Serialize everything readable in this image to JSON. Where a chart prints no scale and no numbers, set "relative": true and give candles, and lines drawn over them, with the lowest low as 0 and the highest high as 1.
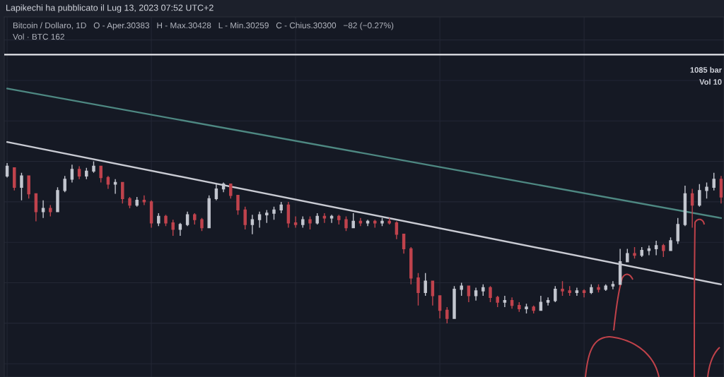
{
  "chart_data": {
    "type": "candlestick",
    "relative": true,
    "grid": true,
    "title": "Lapikechi ha pubblicato il Lug 13, 2023 07:52 UTC+2",
    "subtitle": "Bitcoin / Dollaro, 1D   O - Aper.30383   H - Max.30428   L - Min.30259   C - Chius.30300   −82 (−0.27%)",
    "annotations": [
      "Vol · BTC 162",
      "1085 bar",
      "Vol 10"
    ],
    "categories": [
      null,
      null,
      null,
      null,
      null,
      null,
      null,
      null,
      null,
      null,
      null,
      null,
      null,
      null,
      null,
      null,
      null,
      null,
      null,
      null,
      null,
      null,
      null,
      null,
      null,
      null,
      null,
      null,
      null,
      null,
      null,
      null,
      null,
      null,
      null,
      null,
      null,
      null,
      null,
      null,
      null,
      null,
      null,
      null,
      null,
      null,
      null,
      null,
      null,
      null,
      null,
      null,
      null,
      null,
      null,
      null,
      null,
      null,
      null,
      null,
      null,
      null,
      null,
      null,
      null,
      null,
      null,
      null,
      null,
      null,
      null,
      null,
      null,
      null,
      null,
      null,
      null,
      null,
      null,
      null,
      null,
      null,
      null,
      null,
      null,
      null,
      null,
      null,
      null,
      null,
      null,
      null,
      null,
      null,
      null,
      null,
      null,
      null,
      null,
      null
    ],
    "ohlc": [
      [
        0.91,
        0.99,
        0.9,
        0.97
      ],
      [
        0.96,
        0.96,
        0.82,
        0.84
      ],
      [
        0.84,
        0.93,
        0.76,
        0.91
      ],
      [
        0.91,
        0.91,
        0.77,
        0.8
      ],
      [
        0.8,
        0.8,
        0.63,
        0.69
      ],
      [
        0.69,
        0.76,
        0.65,
        0.71
      ],
      [
        0.71,
        0.73,
        0.66,
        0.69
      ],
      [
        0.69,
        0.84,
        0.69,
        0.82
      ],
      [
        0.82,
        0.91,
        0.81,
        0.89
      ],
      [
        0.89,
        0.98,
        0.87,
        0.95
      ],
      [
        0.95,
        0.97,
        0.89,
        0.91
      ],
      [
        0.91,
        0.96,
        0.89,
        0.94
      ],
      [
        0.94,
        1,
        0.93,
        0.97
      ],
      [
        0.97,
        0.97,
        0.87,
        0.9
      ],
      [
        0.9,
        0.91,
        0.83,
        0.86
      ],
      [
        0.86,
        0.89,
        0.8,
        0.87
      ],
      [
        0.87,
        0.87,
        0.74,
        0.77
      ],
      [
        0.77,
        0.78,
        0.71,
        0.73
      ],
      [
        0.73,
        0.78,
        0.72,
        0.76
      ],
      [
        0.76,
        0.79,
        0.73,
        0.75
      ],
      [
        0.75,
        0.76,
        0.59,
        0.62
      ],
      [
        0.62,
        0.68,
        0.6,
        0.66
      ],
      [
        0.66,
        0.67,
        0.6,
        0.62
      ],
      [
        0.62,
        0.64,
        0.54,
        0.58
      ],
      [
        0.58,
        0.62,
        0.54,
        0.61
      ],
      [
        0.61,
        0.69,
        0.6,
        0.67
      ],
      [
        0.67,
        0.68,
        0.61,
        0.64
      ],
      [
        0.64,
        0.65,
        0.57,
        0.59
      ],
      [
        0.59,
        0.79,
        0.59,
        0.77
      ],
      [
        0.77,
        0.86,
        0.76,
        0.83
      ],
      [
        0.83,
        0.87,
        0.81,
        0.86
      ],
      [
        0.86,
        0.86,
        0.77,
        0.79
      ],
      [
        0.79,
        0.79,
        0.67,
        0.7
      ],
      [
        0.7,
        0.72,
        0.58,
        0.61
      ],
      [
        0.61,
        0.67,
        0.55,
        0.64
      ],
      [
        0.64,
        0.69,
        0.59,
        0.67
      ],
      [
        0.67,
        0.7,
        0.62,
        0.68
      ],
      [
        0.68,
        0.72,
        0.64,
        0.7
      ],
      [
        0.7,
        0.75,
        0.68,
        0.73
      ],
      [
        0.73,
        0.75,
        0.59,
        0.62
      ],
      [
        0.62,
        0.66,
        0.59,
        0.61
      ],
      [
        0.61,
        0.66,
        0.59,
        0.64
      ],
      [
        0.64,
        0.66,
        0.58,
        0.62
      ],
      [
        0.62,
        0.68,
        0.61,
        0.66
      ],
      [
        0.66,
        0.68,
        0.62,
        0.65
      ],
      [
        0.65,
        0.67,
        0.62,
        0.66
      ],
      [
        0.66,
        0.67,
        0.61,
        0.64
      ],
      [
        0.64,
        0.66,
        0.57,
        0.59
      ],
      [
        0.59,
        0.68,
        0.59,
        0.63
      ],
      [
        0.63,
        0.65,
        0.6,
        0.62
      ],
      [
        0.62,
        0.64,
        0.6,
        0.63
      ],
      [
        0.63,
        0.64,
        0.59,
        0.62
      ],
      [
        0.62,
        0.65,
        0.6,
        0.63
      ],
      [
        0.63,
        0.65,
        0.61,
        0.62
      ],
      [
        0.62,
        0.63,
        0.52,
        0.55
      ],
      [
        0.55,
        0.55,
        0.43,
        0.46
      ],
      [
        0.46,
        0.47,
        0.24,
        0.28
      ],
      [
        0.28,
        0.31,
        0.11,
        0.19
      ],
      [
        0.19,
        0.31,
        0.17,
        0.26
      ],
      [
        0.26,
        0.26,
        0.11,
        0.17
      ],
      [
        0.17,
        0.17,
        0.03,
        0.08
      ],
      [
        0.08,
        0.1,
        0,
        0.03
      ],
      [
        0.03,
        0.23,
        0.03,
        0.21
      ],
      [
        0.21,
        0.25,
        0.17,
        0.23
      ],
      [
        0.23,
        0.23,
        0.13,
        0.17
      ],
      [
        0.17,
        0.22,
        0.14,
        0.2
      ],
      [
        0.2,
        0.24,
        0.17,
        0.22
      ],
      [
        0.22,
        0.23,
        0.13,
        0.16
      ],
      [
        0.16,
        0.17,
        0.1,
        0.13
      ],
      [
        0.13,
        0.17,
        0.1,
        0.14
      ],
      [
        0.14,
        0.16,
        0.09,
        0.11
      ],
      [
        0.11,
        0.13,
        0.07,
        0.09
      ],
      [
        0.09,
        0.12,
        0.06,
        0.1
      ],
      [
        0.1,
        0.11,
        0.06,
        0.08
      ],
      [
        0.08,
        0.17,
        0.08,
        0.13
      ],
      [
        0.13,
        0.16,
        0.11,
        0.14
      ],
      [
        0.14,
        0.23,
        0.13,
        0.21
      ],
      [
        0.21,
        0.26,
        0.17,
        0.2
      ],
      [
        0.2,
        0.23,
        0.17,
        0.19
      ],
      [
        0.19,
        0.22,
        0.17,
        0.2
      ],
      [
        0.2,
        0.21,
        0.16,
        0.19
      ],
      [
        0.19,
        0.24,
        0.18,
        0.22
      ],
      [
        0.22,
        0.24,
        0.19,
        0.21
      ],
      [
        0.21,
        0.24,
        0.2,
        0.23
      ],
      [
        0.23,
        0.26,
        0.21,
        0.24
      ],
      [
        0.24,
        0.46,
        0.24,
        0.38
      ],
      [
        0.38,
        0.46,
        0.38,
        0.43
      ],
      [
        0.43,
        0.47,
        0.4,
        0.42
      ],
      [
        0.42,
        0.47,
        0.41,
        0.45
      ],
      [
        0.45,
        0.48,
        0.42,
        0.46
      ],
      [
        0.46,
        0.51,
        0.42,
        0.48
      ],
      [
        0.48,
        0.49,
        0.41,
        0.45
      ],
      [
        0.45,
        0.53,
        0.45,
        0.51
      ],
      [
        0.51,
        0.65,
        0.49,
        0.61
      ],
      [
        0.61,
        0.85,
        0.6,
        0.8
      ],
      [
        0.8,
        0.83,
        0.59,
        0.73
      ],
      [
        0.73,
        0.86,
        0.72,
        0.82
      ],
      [
        0.82,
        0.87,
        0.77,
        0.84
      ],
      [
        0.84,
        0.93,
        0.82,
        0.89
      ],
      [
        0.89,
        0.91,
        0.74,
        0.78
      ]
    ],
    "colors": [
      "#c3c6cf",
      "#c0434d",
      "#c3c6cf",
      "#c0434d",
      "#c0434d",
      "#c3c6cf",
      "#c0434d",
      "#c3c6cf",
      "#c3c6cf",
      "#c3c6cf",
      "#c0434d",
      "#c3c6cf",
      "#c3c6cf",
      "#c0434d",
      "#c0434d",
      "#c3c6cf",
      "#c0434d",
      "#c0434d",
      "#c3c6cf",
      "#c0434d",
      "#c0434d",
      "#c3c6cf",
      "#c0434d",
      "#c0434d",
      "#c3c6cf",
      "#c3c6cf",
      "#c0434d",
      "#c0434d",
      "#c3c6cf",
      "#c3c6cf",
      "#c3c6cf",
      "#c0434d",
      "#c0434d",
      "#c0434d",
      "#c3c6cf",
      "#c3c6cf",
      "#c3c6cf",
      "#c3c6cf",
      "#c3c6cf",
      "#c0434d",
      "#c0434d",
      "#c3c6cf",
      "#c0434d",
      "#c3c6cf",
      "#c0434d",
      "#c3c6cf",
      "#c0434d",
      "#c0434d",
      "#c3c6cf",
      "#c0434d",
      "#c3c6cf",
      "#c0434d",
      "#c3c6cf",
      "#c0434d",
      "#c0434d",
      "#c0434d",
      "#c0434d",
      "#c0434d",
      "#c3c6cf",
      "#c0434d",
      "#c0434d",
      "#c0434d",
      "#c3c6cf",
      "#c3c6cf",
      "#c0434d",
      "#c3c6cf",
      "#c3c6cf",
      "#c0434d",
      "#c0434d",
      "#c3c6cf",
      "#c0434d",
      "#c0434d",
      "#c3c6cf",
      "#c0434d",
      "#c3c6cf",
      "#c3c6cf",
      "#c3c6cf",
      "#c0434d",
      "#c0434d",
      "#c3c6cf",
      "#c0434d",
      "#c3c6cf",
      "#c0434d",
      "#c3c6cf",
      "#c3c6cf",
      "#c3c6cf",
      "#c3c6cf",
      "#c0434d",
      "#c3c6cf",
      "#c3c6cf",
      "#c3c6cf",
      "#c0434d",
      "#c3c6cf",
      "#c3c6cf",
      "#c3c6cf",
      "#c0434d",
      "#c3c6cf",
      "#c3c6cf",
      "#c3c6cf",
      "#c0434d"
    ],
    "series": [
      {
        "type": "line",
        "color": "#c9cbd3",
        "values": [
          1.12,
          null,
          null,
          null,
          null,
          null,
          null,
          null,
          null,
          null,
          null,
          null,
          null,
          null,
          null,
          null,
          null,
          null,
          null,
          null,
          null,
          null,
          null,
          null,
          null,
          null,
          null,
          null,
          null,
          null,
          null,
          null,
          null,
          null,
          null,
          null,
          null,
          null,
          null,
          null,
          null,
          null,
          null,
          null,
          null,
          null,
          null,
          null,
          null,
          null,
          null,
          null,
          null,
          null,
          null,
          null,
          null,
          null,
          null,
          null,
          null,
          null,
          null,
          null,
          null,
          null,
          null,
          null,
          null,
          null,
          null,
          null,
          null,
          null,
          null,
          null,
          null,
          null,
          null,
          null,
          null,
          null,
          null,
          null,
          null,
          null,
          null,
          null,
          null,
          null,
          null,
          null,
          null,
          null,
          null,
          null,
          null,
          null,
          null,
          0.24
        ]
      },
      {
        "type": "line",
        "color": "#4e8882",
        "values": [
          1.45,
          null,
          null,
          null,
          null,
          null,
          null,
          null,
          null,
          null,
          null,
          null,
          null,
          null,
          null,
          null,
          null,
          null,
          null,
          null,
          null,
          null,
          null,
          null,
          null,
          null,
          null,
          null,
          null,
          null,
          null,
          null,
          null,
          null,
          null,
          null,
          null,
          null,
          null,
          null,
          null,
          null,
          null,
          null,
          null,
          null,
          null,
          null,
          null,
          null,
          null,
          null,
          null,
          null,
          null,
          null,
          null,
          null,
          null,
          null,
          null,
          null,
          null,
          null,
          null,
          null,
          null,
          null,
          null,
          null,
          null,
          null,
          null,
          null,
          null,
          null,
          null,
          null,
          null,
          null,
          null,
          null,
          null,
          null,
          null,
          null,
          null,
          null,
          null,
          null,
          null,
          null,
          null,
          null,
          null,
          null,
          null,
          null,
          null,
          0.65
        ]
      }
    ],
    "ref_lines": [
      {
        "axis": "y",
        "value": 1.66,
        "color": "#e6e7eb"
      }
    ]
  }
}
